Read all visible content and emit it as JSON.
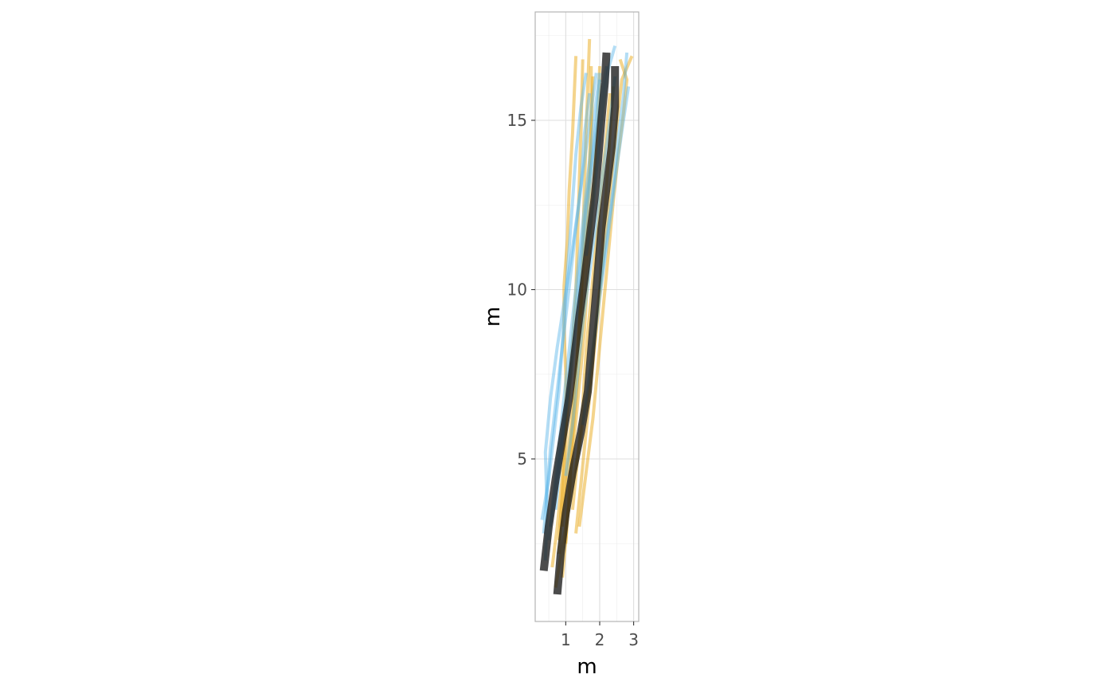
{
  "chart_data": {
    "type": "line",
    "title": "",
    "xlabel": "m",
    "ylabel": "m",
    "xlim": [
      0.1,
      3.15
    ],
    "ylim": [
      0.2,
      18.2
    ],
    "x_ticks": [
      1,
      2,
      3
    ],
    "y_ticks": [
      5,
      10,
      15
    ],
    "grid": true,
    "legend": "none",
    "colors": {
      "orange": "#E69F00",
      "sky_blue": "#56B4E9",
      "highlight": "#1a1a1a"
    },
    "series": [
      {
        "group": "orange",
        "points": [
          [
            0.9,
            1.5
          ],
          [
            1.0,
            2.6
          ],
          [
            1.1,
            4.0
          ],
          [
            1.2,
            5.6
          ],
          [
            1.35,
            7.4
          ],
          [
            1.5,
            9.2
          ],
          [
            1.6,
            11.0
          ],
          [
            1.7,
            12.8
          ],
          [
            1.75,
            14.5
          ],
          [
            1.8,
            16.3
          ]
        ]
      },
      {
        "group": "orange",
        "points": [
          [
            0.6,
            1.8
          ],
          [
            0.75,
            3.0
          ],
          [
            0.9,
            4.5
          ],
          [
            1.0,
            6.0
          ],
          [
            1.0,
            7.5
          ],
          [
            0.95,
            8.8
          ],
          [
            0.95,
            10.1
          ],
          [
            1.05,
            11.5
          ],
          [
            1.1,
            12.9
          ],
          [
            1.2,
            14.6
          ],
          [
            1.3,
            16.9
          ]
        ]
      },
      {
        "group": "orange",
        "points": [
          [
            1.0,
            2.5
          ],
          [
            1.1,
            4.0
          ],
          [
            1.25,
            5.6
          ],
          [
            1.4,
            7.2
          ],
          [
            1.55,
            8.8
          ],
          [
            1.65,
            10.4
          ],
          [
            1.75,
            12.0
          ],
          [
            1.85,
            13.6
          ],
          [
            1.95,
            15.2
          ],
          [
            2.0,
            16.6
          ]
        ]
      },
      {
        "group": "orange",
        "points": [
          [
            0.8,
            2.2
          ],
          [
            0.9,
            3.6
          ],
          [
            1.05,
            5.0
          ],
          [
            1.2,
            6.5
          ],
          [
            1.35,
            8.1
          ],
          [
            1.45,
            9.7
          ],
          [
            1.5,
            11.3
          ],
          [
            1.55,
            12.9
          ],
          [
            1.6,
            14.6
          ],
          [
            1.7,
            17.4
          ]
        ]
      },
      {
        "group": "orange",
        "points": [
          [
            1.3,
            2.8
          ],
          [
            1.45,
            4.3
          ],
          [
            1.6,
            5.8
          ],
          [
            1.75,
            7.3
          ],
          [
            1.9,
            8.8
          ],
          [
            2.05,
            10.3
          ],
          [
            2.2,
            11.8
          ],
          [
            2.35,
            13.3
          ],
          [
            2.5,
            14.8
          ],
          [
            2.65,
            16.2
          ],
          [
            2.95,
            16.9
          ]
        ]
      },
      {
        "group": "orange",
        "points": [
          [
            0.8,
            2.6
          ],
          [
            0.9,
            4.0
          ],
          [
            1.0,
            5.5
          ],
          [
            1.1,
            7.0
          ],
          [
            1.2,
            8.5
          ],
          [
            1.3,
            10.0
          ],
          [
            1.35,
            11.6
          ],
          [
            1.4,
            13.2
          ],
          [
            1.45,
            14.8
          ],
          [
            1.5,
            16.8
          ]
        ]
      },
      {
        "group": "orange",
        "points": [
          [
            1.4,
            3.0
          ],
          [
            1.6,
            4.6
          ],
          [
            1.8,
            6.2
          ],
          [
            1.95,
            7.8
          ],
          [
            2.1,
            9.4
          ],
          [
            2.25,
            11.0
          ],
          [
            2.4,
            12.6
          ],
          [
            2.55,
            14.0
          ],
          [
            2.7,
            15.2
          ],
          [
            2.8,
            16.2
          ],
          [
            2.6,
            16.8
          ]
        ]
      },
      {
        "group": "orange",
        "points": [
          [
            0.9,
            3.0
          ],
          [
            1.05,
            4.5
          ],
          [
            1.2,
            6.0
          ],
          [
            1.3,
            7.5
          ],
          [
            1.4,
            9.0
          ],
          [
            1.5,
            10.6
          ],
          [
            1.6,
            12.2
          ],
          [
            1.7,
            13.8
          ],
          [
            1.75,
            15.3
          ],
          [
            1.75,
            16.6
          ]
        ]
      },
      {
        "group": "orange",
        "points": [
          [
            0.7,
            1.2
          ],
          [
            0.9,
            2.4
          ],
          [
            1.1,
            3.6
          ],
          [
            1.3,
            4.8
          ],
          [
            1.5,
            6.0
          ],
          [
            1.7,
            7.2
          ],
          [
            1.85,
            8.6
          ],
          [
            2.0,
            10.0
          ],
          [
            2.1,
            11.5
          ],
          [
            2.2,
            13.0
          ],
          [
            2.3,
            14.6
          ],
          [
            2.4,
            16.0
          ]
        ]
      },
      {
        "group": "orange",
        "points": [
          [
            1.2,
            3.5
          ],
          [
            1.35,
            5.0
          ],
          [
            1.5,
            6.6
          ],
          [
            1.6,
            8.2
          ],
          [
            1.75,
            9.8
          ],
          [
            1.9,
            11.4
          ],
          [
            2.05,
            13.0
          ],
          [
            2.2,
            14.6
          ],
          [
            2.3,
            15.8
          ]
        ]
      },
      {
        "group": "sky_blue",
        "points": [
          [
            0.35,
            2.8
          ],
          [
            0.45,
            4.0
          ],
          [
            0.55,
            5.3
          ],
          [
            0.7,
            6.6
          ],
          [
            0.85,
            7.9
          ],
          [
            1.0,
            9.2
          ],
          [
            1.15,
            10.5
          ],
          [
            1.3,
            11.8
          ],
          [
            1.45,
            13.1
          ],
          [
            1.55,
            14.6
          ],
          [
            1.7,
            15.8
          ]
        ]
      },
      {
        "group": "sky_blue",
        "points": [
          [
            0.4,
            2.0
          ],
          [
            0.45,
            3.5
          ],
          [
            0.4,
            5.2
          ],
          [
            0.55,
            6.8
          ],
          [
            0.75,
            8.3
          ],
          [
            0.95,
            9.6
          ],
          [
            1.15,
            10.9
          ],
          [
            1.35,
            12.3
          ],
          [
            1.55,
            13.8
          ],
          [
            1.75,
            15.3
          ],
          [
            1.9,
            16.4
          ]
        ]
      },
      {
        "group": "sky_blue",
        "points": [
          [
            0.3,
            3.2
          ],
          [
            0.5,
            4.4
          ],
          [
            0.65,
            5.7
          ],
          [
            0.8,
            7.0
          ],
          [
            0.9,
            8.4
          ],
          [
            1.0,
            9.8
          ],
          [
            1.1,
            11.2
          ],
          [
            1.2,
            12.6
          ],
          [
            1.3,
            14.0
          ],
          [
            1.45,
            15.4
          ],
          [
            1.6,
            16.4
          ]
        ]
      },
      {
        "group": "sky_blue",
        "points": [
          [
            0.5,
            2.6
          ],
          [
            0.65,
            4.0
          ],
          [
            0.8,
            5.4
          ],
          [
            0.95,
            6.8
          ],
          [
            1.1,
            8.2
          ],
          [
            1.25,
            9.6
          ],
          [
            1.4,
            11.0
          ],
          [
            1.55,
            12.4
          ],
          [
            1.7,
            13.8
          ],
          [
            1.85,
            15.2
          ],
          [
            2.0,
            16.4
          ]
        ]
      },
      {
        "group": "sky_blue",
        "points": [
          [
            0.55,
            3.0
          ],
          [
            0.75,
            4.5
          ],
          [
            0.95,
            6.0
          ],
          [
            1.15,
            7.5
          ],
          [
            1.3,
            9.0
          ],
          [
            1.45,
            10.5
          ],
          [
            1.6,
            12.0
          ],
          [
            1.75,
            13.5
          ],
          [
            1.9,
            15.0
          ],
          [
            2.0,
            16.2
          ]
        ]
      },
      {
        "group": "sky_blue",
        "points": [
          [
            0.7,
            3.5
          ],
          [
            0.85,
            5.0
          ],
          [
            1.0,
            6.5
          ],
          [
            1.15,
            8.0
          ],
          [
            1.3,
            9.5
          ],
          [
            1.45,
            11.0
          ],
          [
            1.6,
            12.5
          ],
          [
            1.8,
            14.0
          ],
          [
            2.0,
            15.4
          ],
          [
            2.2,
            16.6
          ]
        ]
      },
      {
        "group": "sky_blue",
        "points": [
          [
            1.0,
            4.5
          ],
          [
            1.2,
            6.0
          ],
          [
            1.35,
            7.5
          ],
          [
            1.5,
            9.0
          ],
          [
            1.7,
            10.5
          ],
          [
            1.9,
            12.0
          ],
          [
            2.1,
            13.5
          ],
          [
            2.3,
            15.0
          ],
          [
            2.45,
            16.3
          ]
        ]
      },
      {
        "group": "sky_blue",
        "points": [
          [
            1.5,
            6.0
          ],
          [
            1.7,
            7.5
          ],
          [
            1.9,
            9.0
          ],
          [
            2.1,
            10.5
          ],
          [
            2.3,
            12.0
          ],
          [
            2.5,
            13.6
          ],
          [
            2.7,
            15.0
          ],
          [
            2.85,
            16.0
          ]
        ]
      },
      {
        "group": "sky_blue",
        "points": [
          [
            2.0,
            10.0
          ],
          [
            2.2,
            11.5
          ],
          [
            2.4,
            13.0
          ],
          [
            2.55,
            14.5
          ],
          [
            2.7,
            15.7
          ],
          [
            2.8,
            17.0
          ]
        ]
      },
      {
        "group": "sky_blue",
        "points": [
          [
            1.6,
            11.0
          ],
          [
            1.8,
            12.5
          ],
          [
            1.95,
            14.0
          ],
          [
            2.1,
            15.4
          ],
          [
            2.25,
            16.5
          ],
          [
            2.45,
            17.2
          ]
        ]
      },
      {
        "group": "highlight",
        "points": [
          [
            0.35,
            1.7
          ],
          [
            0.5,
            3.0
          ],
          [
            0.7,
            4.4
          ],
          [
            0.9,
            5.6
          ],
          [
            1.1,
            6.8
          ],
          [
            1.25,
            8.0
          ],
          [
            1.4,
            9.2
          ],
          [
            1.55,
            10.3
          ],
          [
            1.7,
            11.5
          ],
          [
            1.85,
            12.7
          ],
          [
            1.95,
            13.8
          ],
          [
            2.05,
            15.0
          ],
          [
            2.15,
            16.1
          ],
          [
            2.2,
            17.0
          ]
        ]
      },
      {
        "group": "highlight",
        "points": [
          [
            0.75,
            1.0
          ],
          [
            0.85,
            2.2
          ],
          [
            1.0,
            3.4
          ],
          [
            1.2,
            4.6
          ],
          [
            1.45,
            5.8
          ],
          [
            1.65,
            7.0
          ],
          [
            1.75,
            8.2
          ],
          [
            1.85,
            9.4
          ],
          [
            1.95,
            10.6
          ],
          [
            2.05,
            11.8
          ],
          [
            2.2,
            13.0
          ],
          [
            2.35,
            14.2
          ],
          [
            2.45,
            15.4
          ],
          [
            2.45,
            16.6
          ]
        ]
      }
    ]
  }
}
